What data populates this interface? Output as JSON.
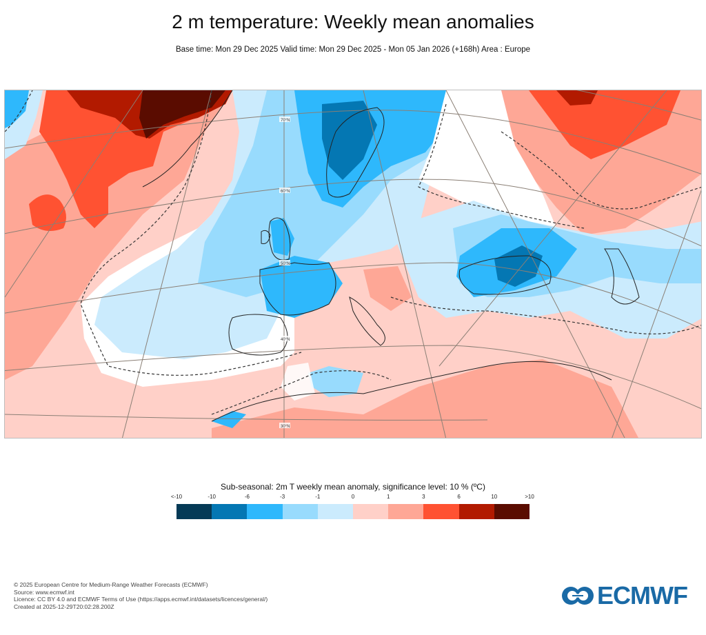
{
  "header": {
    "title": "2 m temperature: Weekly mean anomalies",
    "subtitle": "Base time: Mon 29 Dec 2025 Valid time: Mon 29 Dec 2025 - Mon 05 Jan 2026 (+168h) Area : Europe"
  },
  "map": {
    "area": "Europe",
    "latitude_labels": [
      "70°N",
      "60°N",
      "50°N",
      "40°N",
      "30°N"
    ],
    "significance_contour": "dashed"
  },
  "legend": {
    "title": "Sub-seasonal: 2m T weekly mean anomaly, significance level: 10 % (ºC)",
    "ticks": [
      "<-10",
      "-10",
      "-6",
      "-3",
      "-1",
      "0",
      "1",
      "3",
      "6",
      "10",
      ">10"
    ],
    "colors": [
      "#053a56",
      "#0477b3",
      "#2eb8fc",
      "#98dbfd",
      "#cbebfd",
      "#ffd0c8",
      "#fea796",
      "#ff5232",
      "#b21a00",
      "#5a0c00"
    ]
  },
  "footer": {
    "copyright": "© 2025 European Centre for Medium-Range Weather Forecasts (ECMWF)",
    "source": "Source: www.ecmwf.int",
    "licence": "Licence: CC BY 4.0 and ECMWF Terms of Use (https://apps.ecmwf.int/datasets/licences/general/)",
    "created": "Created at 2025-12-29T20:02:28.200Z"
  },
  "logo": {
    "text": "ECMWF",
    "color": "#1a6aa6"
  }
}
